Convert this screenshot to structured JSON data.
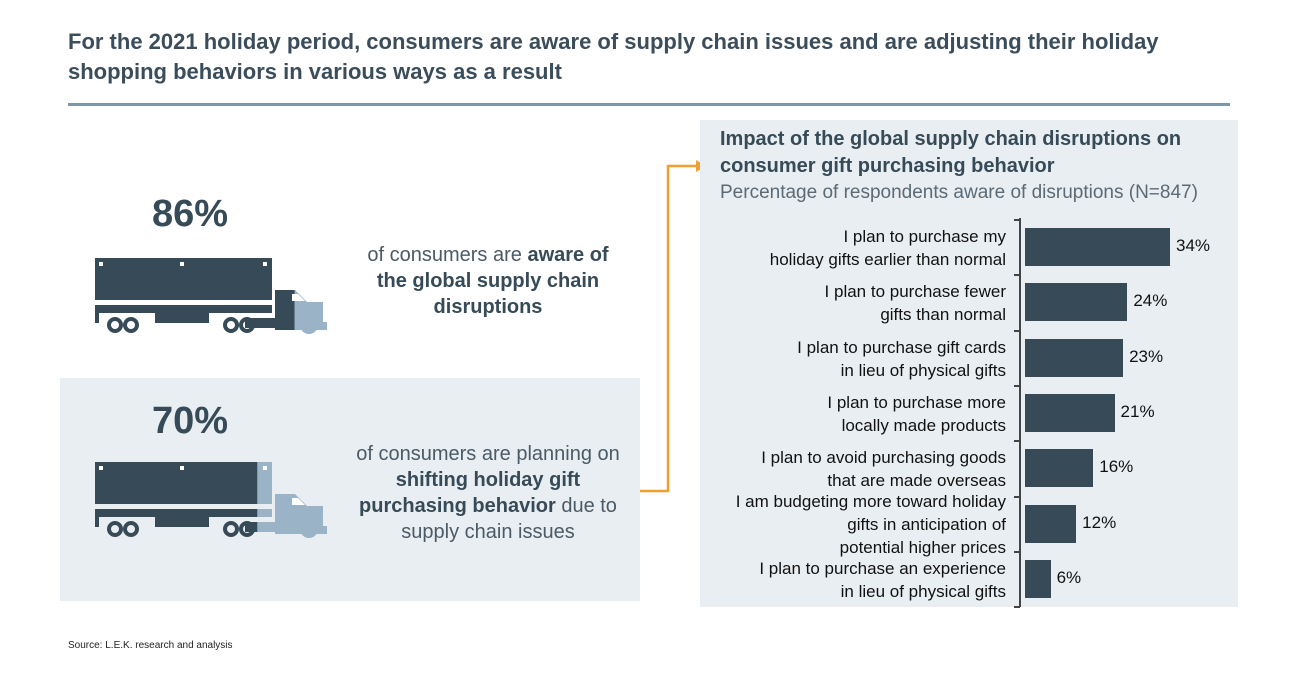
{
  "title": "For the 2021 holiday period, consumers are aware of supply chain issues and are adjusting their holiday shopping behaviors in various ways as a result",
  "colors": {
    "dark": "#364a57",
    "light": "#9bb3c7",
    "panel": "#e9eef2",
    "accent": "#f0a030"
  },
  "stat1": {
    "value": "86%",
    "fraction": 0.86,
    "text_pre": "of consumers are ",
    "text_bold": "aware of the global supply chain disruptions",
    "text_post": ""
  },
  "stat2": {
    "value": "70%",
    "fraction": 0.7,
    "text_pre": "of consumers are planning on ",
    "text_bold": "shifting holiday gift purchasing behavior",
    "text_post": " due to supply chain issues"
  },
  "source": "Source: L.E.K. research and analysis",
  "chart_data": {
    "type": "bar",
    "orientation": "horizontal",
    "title": "Impact of the global supply chain disruptions on consumer gift purchasing behavior",
    "subtitle": "Percentage of respondents aware of disruptions (N=847)",
    "categories": [
      "I plan to purchase my\nholiday gifts earlier than normal",
      "I plan to purchase fewer\ngifts than normal",
      "I plan to purchase gift cards\nin lieu of physical gifts",
      "I plan to purchase more\nlocally made products",
      "I plan to avoid purchasing goods\nthat are made overseas",
      "I am budgeting more toward holiday\ngifts in anticipation of\npotential higher prices",
      "I plan to purchase an experience\nin lieu of physical gifts"
    ],
    "values": [
      34,
      24,
      23,
      21,
      16,
      12,
      6
    ],
    "labels": [
      "34%",
      "24%",
      "23%",
      "21%",
      "16%",
      "12%",
      "6%"
    ],
    "grid": false
  }
}
